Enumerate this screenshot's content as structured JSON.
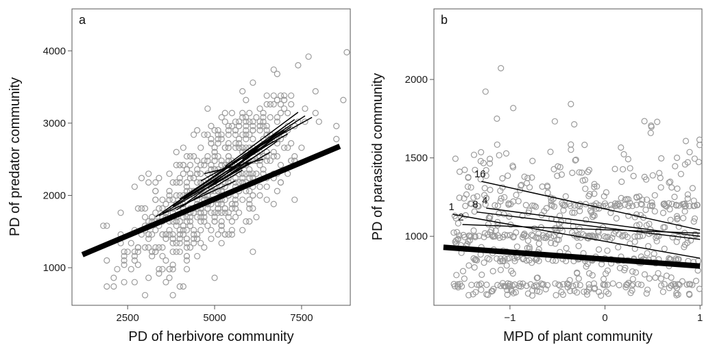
{
  "colors": {
    "points": "#9a9a9a",
    "lines": "#000000",
    "frame": "#555555"
  },
  "chart_data": [
    {
      "type": "scatter",
      "panel_label": "a",
      "xlabel": "PD of herbivore community",
      "ylabel": "PD of predator community",
      "xlim": [
        900,
        8900
      ],
      "ylim": [
        480,
        4580
      ],
      "xticks": [
        2500,
        5000,
        7500
      ],
      "xtick_labels": [
        "2500",
        "5000",
        "7500"
      ],
      "yticks": [
        1000,
        2000,
        3000,
        4000
      ],
      "ytick_labels": [
        "1000",
        "2000",
        "3000",
        "4000"
      ],
      "grid": false,
      "overall_fit": {
        "x": [
          1200,
          8600
        ],
        "y": [
          1180,
          2680
        ]
      },
      "group_fits": [
        {
          "x": [
            3300,
            6800
          ],
          "y": [
            1700,
            2850
          ]
        },
        {
          "x": [
            3600,
            7300
          ],
          "y": [
            1800,
            3050
          ]
        },
        {
          "x": [
            4000,
            7000
          ],
          "y": [
            1950,
            2900
          ]
        },
        {
          "x": [
            4300,
            6500
          ],
          "y": [
            2000,
            2700
          ]
        },
        {
          "x": [
            3800,
            6200
          ],
          "y": [
            1850,
            2550
          ]
        },
        {
          "x": [
            4500,
            7200
          ],
          "y": [
            2050,
            2950
          ]
        },
        {
          "x": [
            5000,
            6800
          ],
          "y": [
            2150,
            2750
          ]
        },
        {
          "x": [
            4200,
            6900
          ],
          "y": [
            1900,
            2850
          ]
        },
        {
          "x": [
            3500,
            6000
          ],
          "y": [
            1750,
            2450
          ]
        },
        {
          "x": [
            4800,
            6600
          ],
          "y": [
            2100,
            2600
          ]
        },
        {
          "x": [
            5500,
            7600
          ],
          "y": [
            2450,
            3100
          ]
        },
        {
          "x": [
            6000,
            7800
          ],
          "y": [
            2600,
            3080
          ]
        },
        {
          "x": [
            3400,
            5600
          ],
          "y": [
            1720,
            2200
          ]
        },
        {
          "x": [
            4600,
            6300
          ],
          "y": [
            2200,
            2650
          ]
        },
        {
          "x": [
            5200,
            7000
          ],
          "y": [
            2250,
            2950
          ]
        },
        {
          "x": [
            3900,
            5800
          ],
          "y": [
            1800,
            2350
          ]
        },
        {
          "x": [
            4100,
            6700
          ],
          "y": [
            1950,
            2750
          ]
        },
        {
          "x": [
            5800,
            7100
          ],
          "y": [
            2500,
            2850
          ]
        },
        {
          "x": [
            4700,
            6400
          ],
          "y": [
            2300,
            2500
          ]
        },
        {
          "x": [
            5300,
            7400
          ],
          "y": [
            2400,
            3150
          ]
        }
      ],
      "point_cloud": {
        "n": 620,
        "x_mean": 5000,
        "x_sd": 1250,
        "y_intercept": 450,
        "y_slope": 0.33,
        "y_sd": 450
      }
    },
    {
      "type": "scatter",
      "panel_label": "b",
      "xlabel": "MPD of plant community",
      "ylabel": "PD of parasitoid community",
      "xlim": [
        -1.8,
        1.02
      ],
      "ylim": [
        560,
        2450
      ],
      "xticks": [
        -1,
        0,
        1
      ],
      "xtick_labels": [
        "−1",
        "0",
        "1"
      ],
      "yticks": [
        1000,
        1500,
        2000
      ],
      "ytick_labels": [
        "1000",
        "1500",
        "2000"
      ],
      "grid": false,
      "overall_fit": {
        "x": [
          -1.7,
          1.0
        ],
        "y": [
          930,
          810
        ]
      },
      "group_fits": [
        {
          "label": "16",
          "x": [
            -1.3,
            1.0
          ],
          "y": [
            1350,
            1040
          ]
        },
        {
          "label": "4",
          "x": [
            -1.25,
            1.0
          ],
          "y": [
            1180,
            1000
          ]
        },
        {
          "label": "8",
          "x": [
            -1.35,
            1.0
          ],
          "y": [
            1155,
            980
          ]
        },
        {
          "label": "1",
          "x": [
            -1.6,
            1.0
          ],
          "y": [
            1140,
            860
          ]
        },
        {
          "label": "2",
          "x": [
            -1.5,
            1.0
          ],
          "y": [
            1075,
            1020
          ]
        }
      ],
      "point_cloud": {
        "n": 700,
        "x_min": -1.6,
        "x_max": 1.0,
        "y_min": 620,
        "y_max": 2380,
        "y_mode": 1050,
        "y_levels": [
          690,
          850,
          1000,
          1200
        ]
      }
    }
  ]
}
